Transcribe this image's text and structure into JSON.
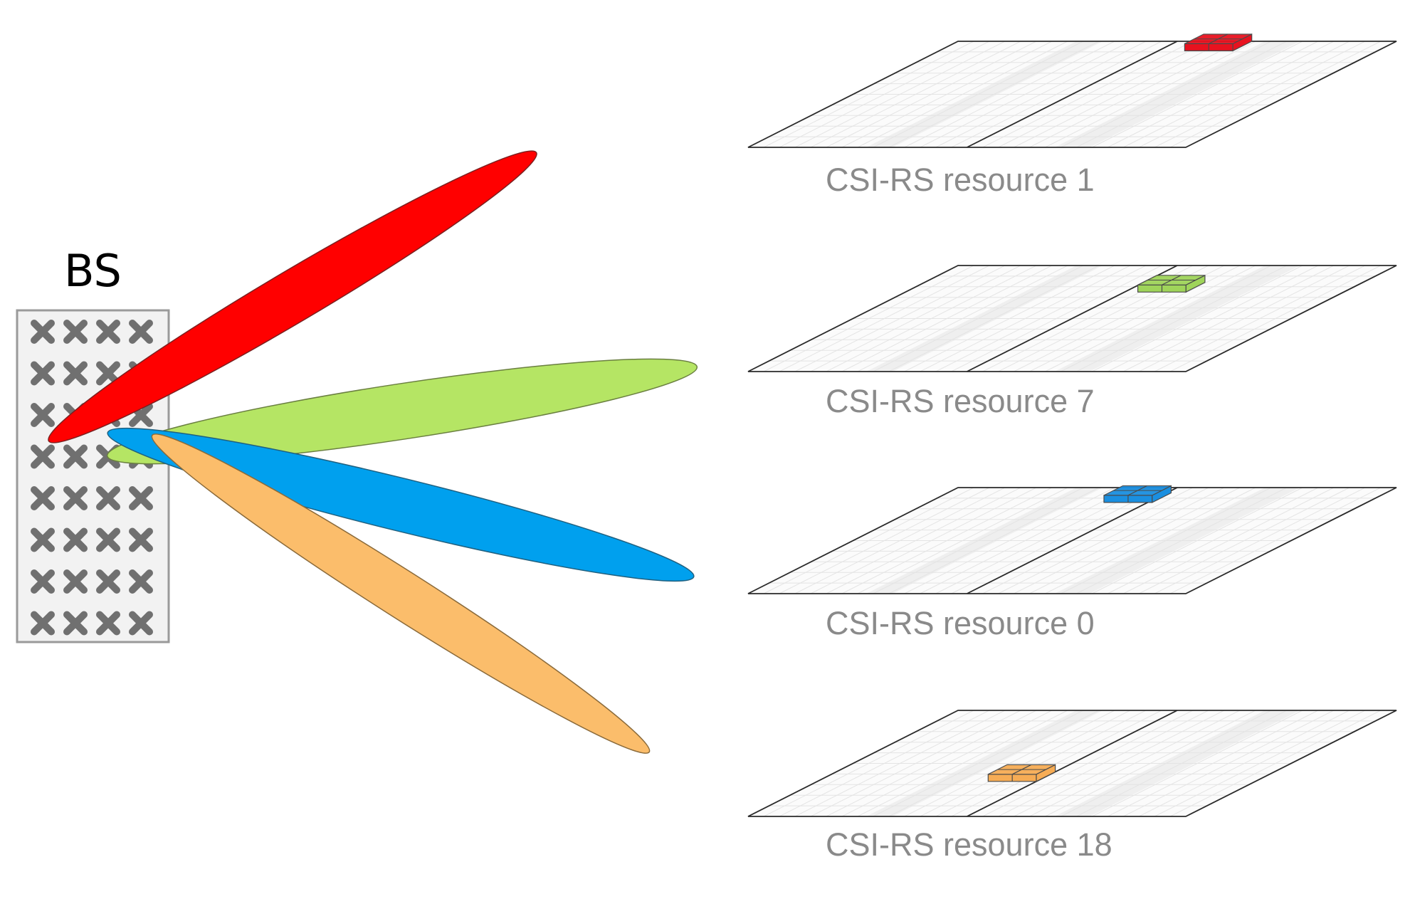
{
  "bs_label": "BS",
  "antenna": {
    "rows": 8,
    "cols": 4,
    "element_glyph": "x-cross-icon",
    "panel_fill": "#f2f2f2",
    "cross_color": "#707070"
  },
  "beams": [
    {
      "name": "beam-red",
      "color": "#ff0000"
    },
    {
      "name": "beam-green",
      "color": "#b5e564"
    },
    {
      "name": "beam-blue",
      "color": "#00a0ee"
    },
    {
      "name": "beam-orange",
      "color": "#fbbd6b"
    }
  ],
  "resources": [
    {
      "label": "CSI-RS resource 1",
      "color": "#e8121f",
      "slot": "right-half, far back"
    },
    {
      "label": "CSI-RS resource 7",
      "color": "#9fd45a",
      "slot": "right-half, middle"
    },
    {
      "label": "CSI-RS resource 0",
      "color": "#1a8fe0",
      "slot": "left-half, far back"
    },
    {
      "label": "CSI-RS resource 18",
      "color": "#f6ac55",
      "slot": "left-half, near front"
    }
  ],
  "grid_colors": {
    "outline": "#2a2a2a",
    "lines": "#e4e4e4",
    "fill": "#fbfbfb",
    "band": "#efefef"
  }
}
